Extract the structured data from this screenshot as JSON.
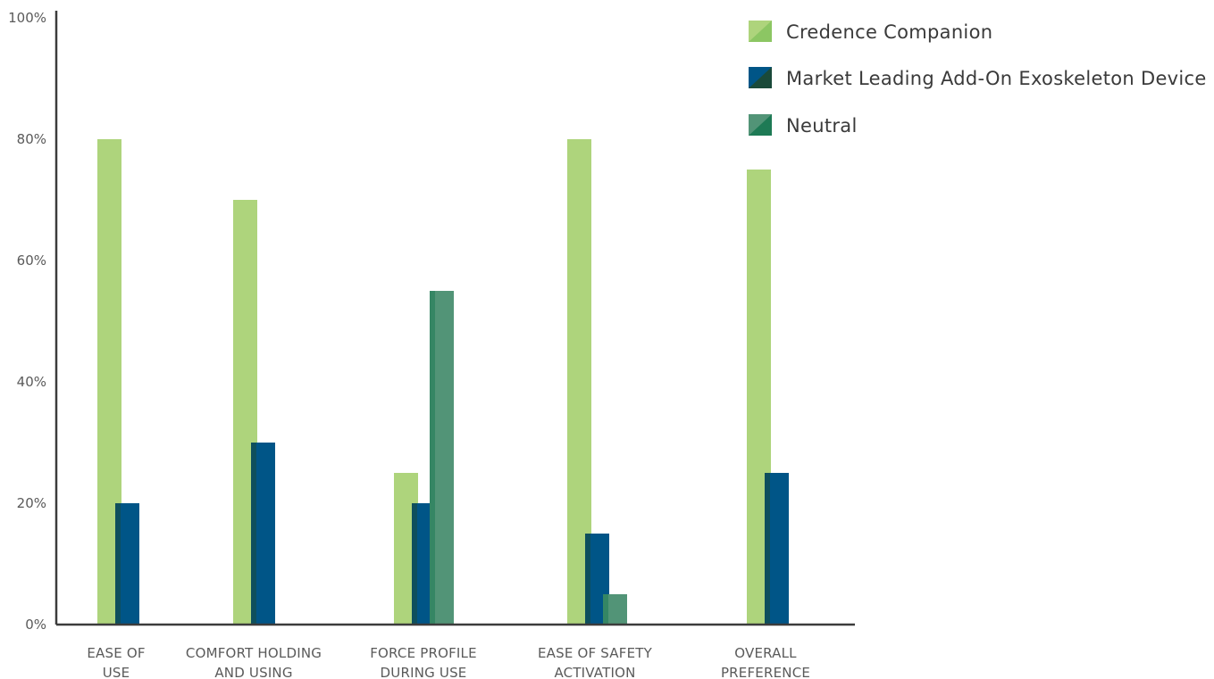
{
  "chart_data": {
    "type": "bar",
    "categories": [
      [
        "EASE OF",
        "USE"
      ],
      [
        "COMFORT HOLDING",
        "AND USING"
      ],
      [
        "FORCE PROFILE",
        "DURING USE"
      ],
      [
        "EASE OF SAFETY",
        "ACTIVATION"
      ],
      [
        "OVERALL",
        "PREFERENCE"
      ]
    ],
    "series": [
      {
        "name": "Credence Companion",
        "color": "#aed47c",
        "accent": "#8cc663",
        "values": [
          80,
          70,
          25,
          null,
          75
        ]
      },
      {
        "name": "Market Leading Add-On Exoskeleton Device",
        "color": "#005587",
        "accent": "#1a4a3a",
        "values": [
          20,
          30,
          20,
          15,
          25
        ]
      },
      {
        "name": "Neutral",
        "color": "#529477",
        "accent": "#1e7a55",
        "values": [
          null,
          null,
          55,
          5,
          null
        ]
      }
    ],
    "series_override": {
      "0": {
        "3": 80
      }
    },
    "y_ticks": [
      "0%",
      "20%",
      "40%",
      "60%",
      "80%",
      "100%"
    ],
    "ylim": [
      0,
      100
    ],
    "legend_position": "top-right",
    "grid": false
  }
}
